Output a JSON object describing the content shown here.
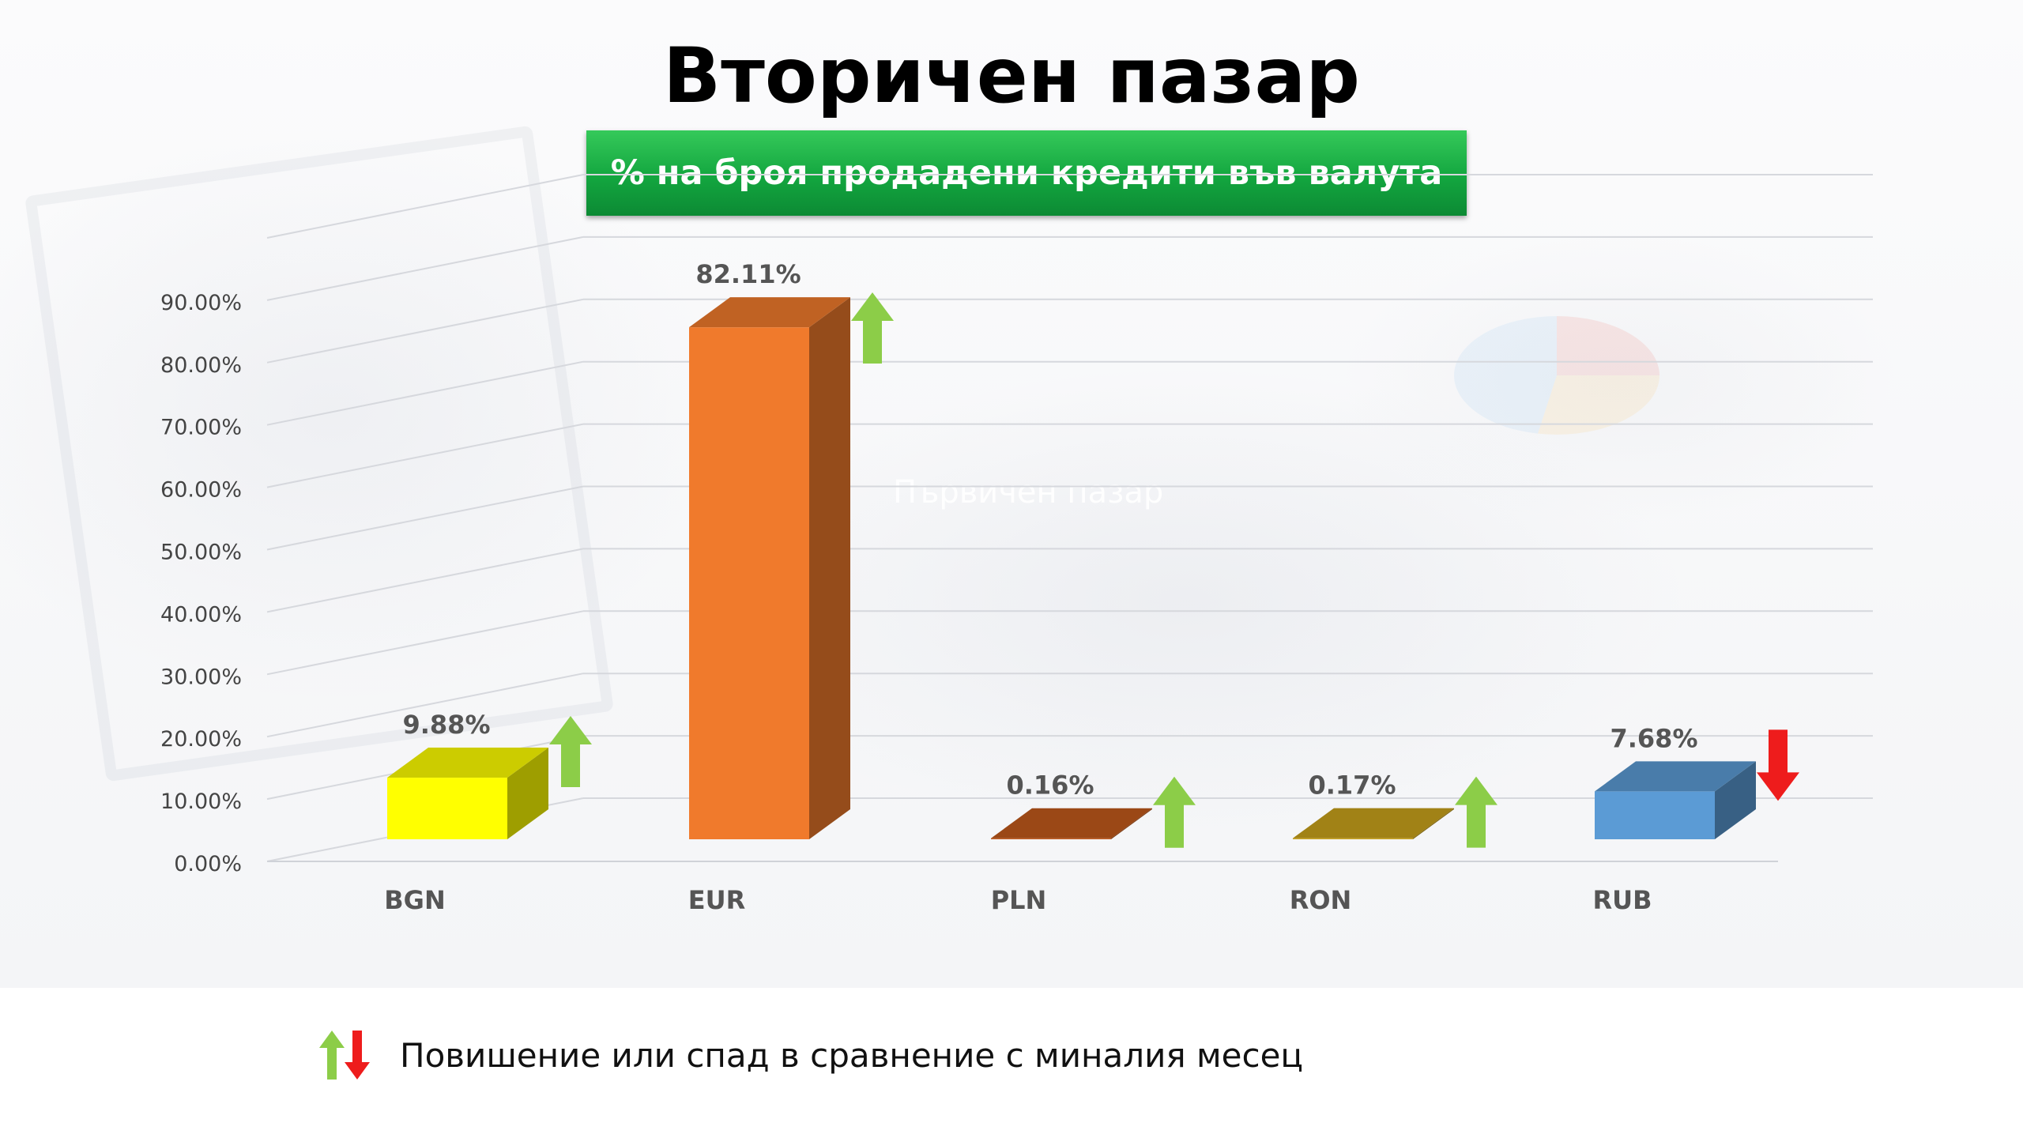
{
  "title": "Вторичен пазар",
  "subtitle": "% на броя продадени кредити във валута",
  "background_text": "Първичен пазар",
  "legend": {
    "text": "Повишение или спад в сравнение с миналия месец",
    "icons": [
      "up-arrow-icon",
      "down-arrow-icon"
    ]
  },
  "colors": {
    "up_arrow": "#8ccd48",
    "down_arrow": "#ee1c1c",
    "banner": "#13a63f"
  },
  "chart_data": {
    "type": "bar",
    "style": "3d",
    "categories": [
      "BGN",
      "EUR",
      "PLN",
      "RON",
      "RUB"
    ],
    "values": [
      9.88,
      82.11,
      0.16,
      0.17,
      7.68
    ],
    "value_labels": [
      "9.88%",
      "82.11%",
      "0.16%",
      "0.17%",
      "7.68%"
    ],
    "trend": [
      "up",
      "up",
      "up",
      "up",
      "down"
    ],
    "bar_colors": [
      "#ffff00",
      "#f07a2c",
      "#c25a1c",
      "#c9a21c",
      "#5b9bd5"
    ],
    "y_ticks": [
      "0.00%",
      "10.00%",
      "20.00%",
      "30.00%",
      "40.00%",
      "50.00%",
      "60.00%",
      "70.00%",
      "80.00%",
      "90.00%"
    ],
    "ylim": [
      0,
      100
    ],
    "grid": true,
    "legend": "bottom-left"
  }
}
